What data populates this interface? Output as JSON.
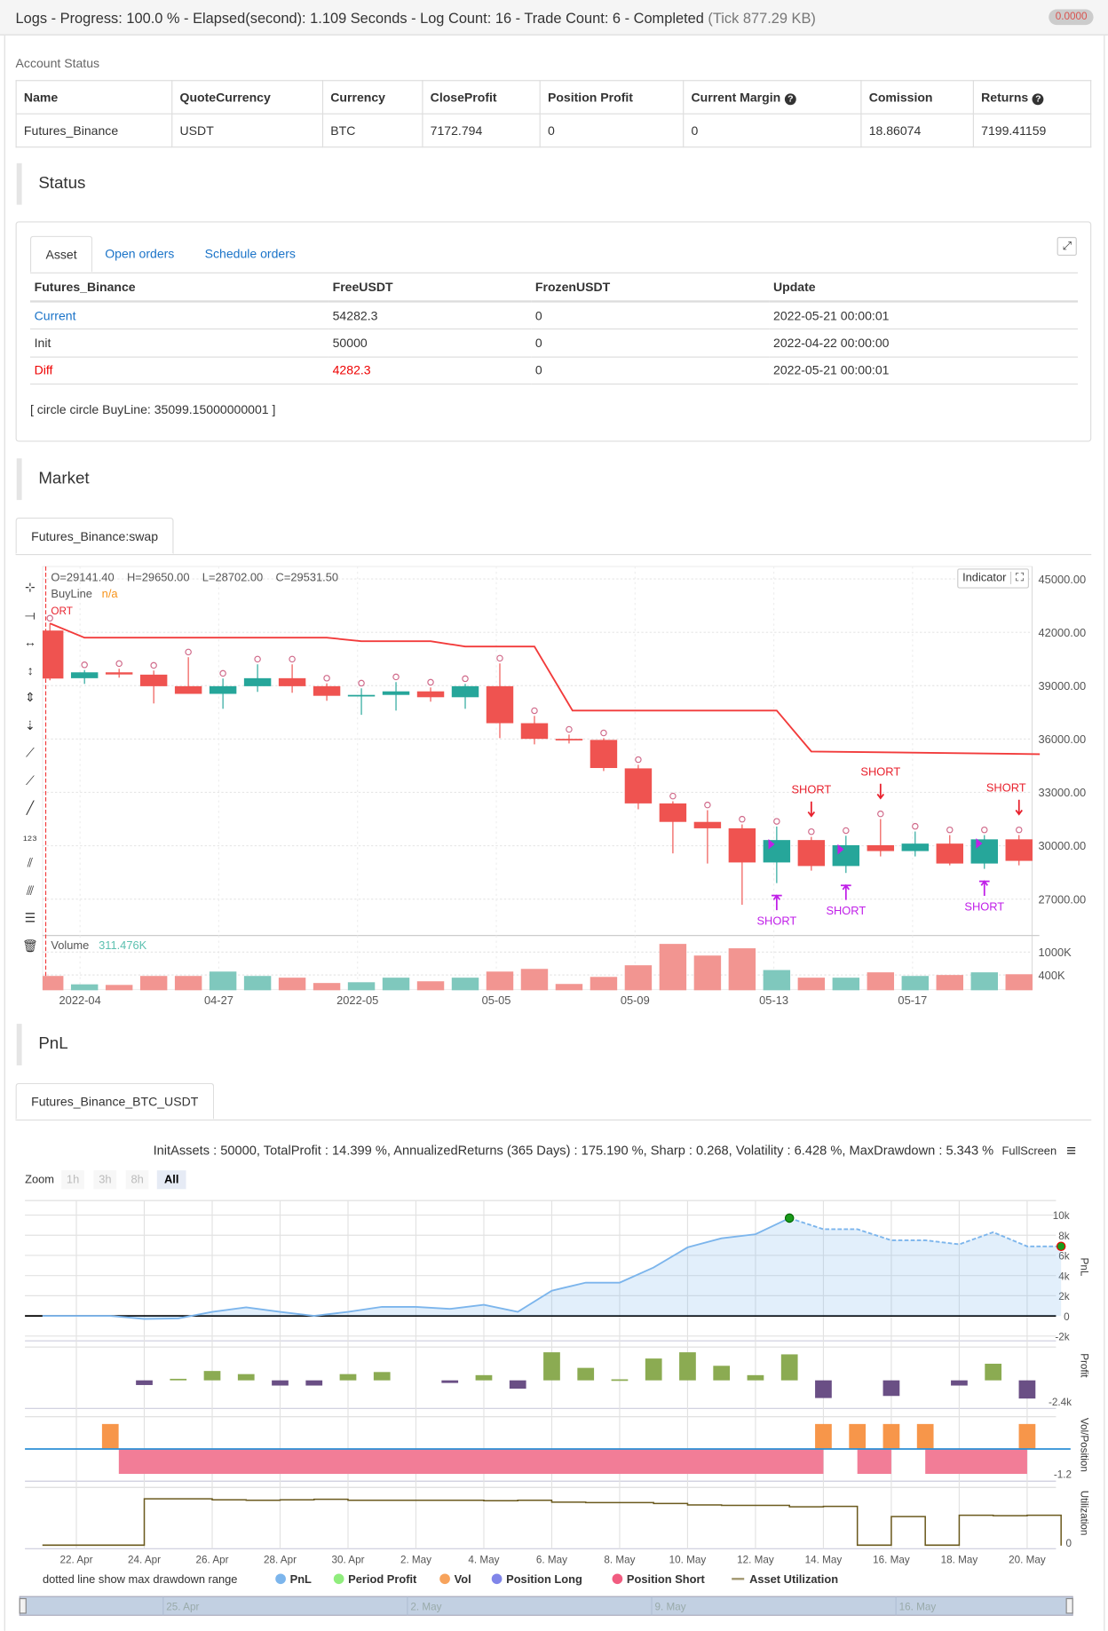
{
  "header": {
    "title": "Logs - Progress: 100.0 % - Elapsed(second): 1.109 Seconds - Log Count: 16 - Trade Count: 6 - Completed",
    "tick": "(Tick 877.29 KB)",
    "badge": "0.0000"
  },
  "account": {
    "label": "Account Status",
    "columns": [
      "Name",
      "QuoteCurrency",
      "Currency",
      "CloseProfit",
      "Position Profit",
      "Current Margin",
      "Comission",
      "Returns"
    ],
    "row": [
      "Futures_Binance",
      "USDT",
      "BTC",
      "7172.794",
      "0",
      "0",
      "18.86074",
      "7199.41159"
    ]
  },
  "status": {
    "title": "Status",
    "tabs": [
      "Asset",
      "Open orders",
      "Schedule orders"
    ],
    "columns": [
      "Futures_Binance",
      "FreeUSDT",
      "FrozenUSDT",
      "Update"
    ],
    "rows": [
      [
        "Current",
        "54282.3",
        "0",
        "2022-05-21 00:00:01"
      ],
      [
        "Init",
        "50000",
        "0",
        "2022-04-22 00:00:00"
      ],
      [
        "Diff",
        "4282.3",
        "0",
        "2022-05-21 00:00:01"
      ]
    ],
    "note": "[ circle circle BuyLine: 35099.15000000001 ]"
  },
  "market": {
    "title": "Market",
    "tab": "Futures_Binance:swap",
    "ohlc": {
      "o": "O=29141.40",
      "h": "H=29650.00",
      "l": "L=28702.00",
      "c": "C=29531.50"
    },
    "buyline_label": "BuyLine",
    "buyline_value": "n/a",
    "indicator_btn": "Indicator",
    "volume_label": "Volume",
    "volume_value": "311.476K",
    "top_clipped_label": "ORT"
  },
  "chart_data": [
    {
      "type": "candlestick",
      "title": "",
      "price_ticks": [
        "45000.00",
        "42000.00",
        "39000.00",
        "36000.00",
        "33000.00",
        "30000.00",
        "27000.00"
      ],
      "ylim": [
        25500,
        45700
      ],
      "x_ticks": [
        "2022-04",
        "04-27",
        "2022-05",
        "05-05",
        "05-09",
        "05-13",
        "05-17"
      ],
      "candles": [
        [
          42100,
          42500,
          39300,
          39400
        ],
        [
          39420,
          39880,
          39100,
          39750
        ],
        [
          39750,
          39950,
          39450,
          39630
        ],
        [
          39620,
          39850,
          38000,
          38970
        ],
        [
          38970,
          40600,
          38540,
          38540
        ],
        [
          38540,
          39400,
          37700,
          38970
        ],
        [
          38970,
          40200,
          38650,
          39420
        ],
        [
          39420,
          40200,
          38600,
          38970
        ],
        [
          38970,
          39130,
          38150,
          38430
        ],
        [
          38450,
          38850,
          37360,
          38480
        ],
        [
          38480,
          39200,
          37600,
          38680
        ],
        [
          38680,
          38900,
          38100,
          38350
        ],
        [
          38350,
          39100,
          37700,
          38970
        ],
        [
          38970,
          40250,
          36050,
          36890
        ],
        [
          36890,
          37300,
          35700,
          36010
        ],
        [
          36010,
          36250,
          35750,
          35960
        ],
        [
          35950,
          36050,
          34200,
          34370
        ],
        [
          34350,
          34550,
          32050,
          32380
        ],
        [
          32380,
          32500,
          29570,
          31340
        ],
        [
          31340,
          32000,
          29000,
          30980
        ],
        [
          30980,
          31200,
          26680,
          29060
        ],
        [
          29060,
          31080,
          27900,
          30320
        ],
        [
          30320,
          30500,
          28600,
          28860
        ],
        [
          28860,
          30560,
          28470,
          30030
        ],
        [
          30030,
          31500,
          29400,
          29700
        ],
        [
          29700,
          30800,
          29400,
          30120
        ],
        [
          30120,
          30600,
          28900,
          29000
        ],
        [
          29000,
          30600,
          28700,
          30360
        ],
        [
          30360,
          30600,
          28900,
          29150
        ]
      ],
      "buyline": [
        [
          0,
          42500
        ],
        [
          1,
          41700
        ],
        [
          8,
          41700
        ],
        [
          9,
          41500
        ],
        [
          11,
          41500
        ],
        [
          12,
          41200
        ],
        [
          14,
          41200
        ],
        [
          15.1,
          37600
        ],
        [
          21,
          37600
        ],
        [
          22,
          35300
        ],
        [
          28.6,
          35150
        ]
      ],
      "volume_ticks": [
        "1000K",
        "400K"
      ],
      "volume": [
        375,
        155,
        140,
        375,
        375,
        490,
        375,
        330,
        190,
        210,
        330,
        235,
        330,
        490,
        560,
        165,
        350,
        655,
        1215,
        910,
        1100,
        530,
        330,
        330,
        470,
        375,
        400,
        470,
        420
      ],
      "signals": [
        {
          "candle": 21,
          "label": "SHORT",
          "side": "below"
        },
        {
          "candle": 22,
          "label": "SHORT",
          "side": "above"
        },
        {
          "candle": 23,
          "label": "SHORT",
          "side": "below"
        },
        {
          "candle": 24,
          "label": "SHORT",
          "side": "above"
        },
        {
          "candle": 27,
          "label": "SHORT",
          "side": "below"
        },
        {
          "candle": 28,
          "label": "SHORT",
          "side": "above"
        }
      ],
      "colors": {
        "up": "#26a69a",
        "down": "#ef5350",
        "buyline": "#f23b3b",
        "signal_above": "#e8212d",
        "signal_below": "#c020e8"
      }
    },
    {
      "type": "line",
      "title": "",
      "ylabel": "PnL",
      "y_ticks": [
        "10k",
        "8k",
        "6k",
        "4k",
        "2k",
        "0",
        "-2k"
      ],
      "ylim": [
        -2.2,
        11
      ],
      "x_ticks": [
        "22. Apr",
        "24. Apr",
        "26. Apr",
        "28. Apr",
        "30. Apr",
        "2. May",
        "4. May",
        "6. May",
        "8. May",
        "10. May",
        "12. May",
        "14. May",
        "16. May",
        "18. May",
        "20. May"
      ],
      "dates": [
        "21 Apr",
        "22 Apr",
        "23 Apr",
        "24 Apr",
        "25 Apr",
        "26 Apr",
        "27 Apr",
        "28 Apr",
        "29 Apr",
        "30 Apr",
        "1 May",
        "2 May",
        "3 May",
        "4 May",
        "5 May",
        "6 May",
        "7 May",
        "8 May",
        "9 May",
        "10 May",
        "11 May",
        "12 May",
        "13 May",
        "14 May",
        "15 May",
        "16 May",
        "17 May",
        "18 May",
        "19 May",
        "20 May",
        "21 May"
      ],
      "values": [
        0,
        0,
        0,
        -0.3,
        -0.25,
        0.4,
        0.85,
        0.4,
        0,
        0.4,
        0.9,
        0.9,
        0.7,
        1.1,
        0.4,
        2.5,
        3.3,
        3.3,
        4.8,
        6.8,
        7.7,
        8.1,
        9.7,
        8.6,
        8.6,
        7.5,
        7.5,
        7.1,
        8.3,
        6.9,
        6.9
      ],
      "max_drawdown_from_index": 22
    },
    {
      "type": "bar",
      "ylabel": "Profit",
      "y_ticks": [
        "-2.4k"
      ],
      "days": [
        3,
        4,
        5,
        6,
        7,
        8,
        9,
        10,
        12,
        13,
        14,
        15,
        16,
        17,
        18,
        19,
        20,
        21,
        22,
        23,
        25,
        27,
        28,
        29
      ],
      "values": [
        -0.45,
        0.15,
        0.9,
        0.6,
        -0.5,
        -0.5,
        0.6,
        0.8,
        -0.25,
        0.5,
        -0.8,
        2.7,
        1.2,
        0.1,
        2.1,
        2.7,
        1.4,
        0.5,
        2.5,
        -1.7,
        -1.5,
        -0.5,
        1.6,
        -1.75
      ],
      "colors": {
        "pos": "#8bab52",
        "neg": "#6a4f85"
      }
    },
    {
      "type": "bar",
      "ylabel": "Vol/Position",
      "y_ticks": [
        "-1.2"
      ],
      "vol_days": [
        2,
        23,
        24,
        25,
        26,
        29
      ],
      "short_ranges": [
        [
          2.25,
          23
        ],
        [
          24,
          25
        ],
        [
          26,
          29
        ]
      ],
      "colors": {
        "vol": "#f7964a",
        "short": "#f27d97",
        "line": "#2b8fd6"
      }
    },
    {
      "type": "line",
      "ylabel": "Utilization",
      "y_ticks": [
        "0"
      ],
      "steps": [
        [
          0,
          0.01
        ],
        [
          3,
          1.0
        ],
        [
          5,
          0.98
        ],
        [
          6,
          0.97
        ],
        [
          7,
          0.98
        ],
        [
          8,
          0.99
        ],
        [
          9,
          0.97
        ],
        [
          10,
          0.97
        ],
        [
          12,
          0.97
        ],
        [
          13,
          0.96
        ],
        [
          14,
          0.97
        ],
        [
          15,
          0.93
        ],
        [
          16,
          0.92
        ],
        [
          18,
          0.9
        ],
        [
          19,
          0.87
        ],
        [
          20,
          0.86
        ],
        [
          22,
          0.83
        ],
        [
          23,
          0.84
        ],
        [
          24,
          0.01
        ],
        [
          25,
          0.62
        ],
        [
          26,
          0.01
        ],
        [
          27,
          0.65
        ],
        [
          28,
          0.64
        ],
        [
          29,
          0.65
        ],
        [
          30,
          0
        ]
      ]
    }
  ],
  "pnl": {
    "title": "PnL",
    "tab": "Futures_Binance_BTC_USDT",
    "stats": "InitAssets : 50000, TotalProfit : 14.399 %, AnnualizedReturns (365 Days) : 175.190 %, Sharp : 0.268, Volatility : 6.428 %, MaxDrawdown : 5.343 %",
    "fullscreen": "FullScreen",
    "zoom_label": "Zoom",
    "zoom_buttons": [
      "1h",
      "3h",
      "8h",
      "All"
    ],
    "legend_note": "dotted line show max drawdown range",
    "legend": [
      {
        "label": "PnL",
        "color": "#7cb5ec"
      },
      {
        "label": "Period Profit",
        "color": "#90ed7d"
      },
      {
        "label": "Vol",
        "color": "#f7a35c"
      },
      {
        "label": "Position Long",
        "color": "#8085e9"
      },
      {
        "label": "Position Short",
        "color": "#f15c80"
      },
      {
        "label": "Asset Utilization",
        "color": "#a0966e"
      }
    ],
    "navigator_ticks": [
      "25. Apr",
      "2. May",
      "9. May",
      "16. May"
    ]
  }
}
